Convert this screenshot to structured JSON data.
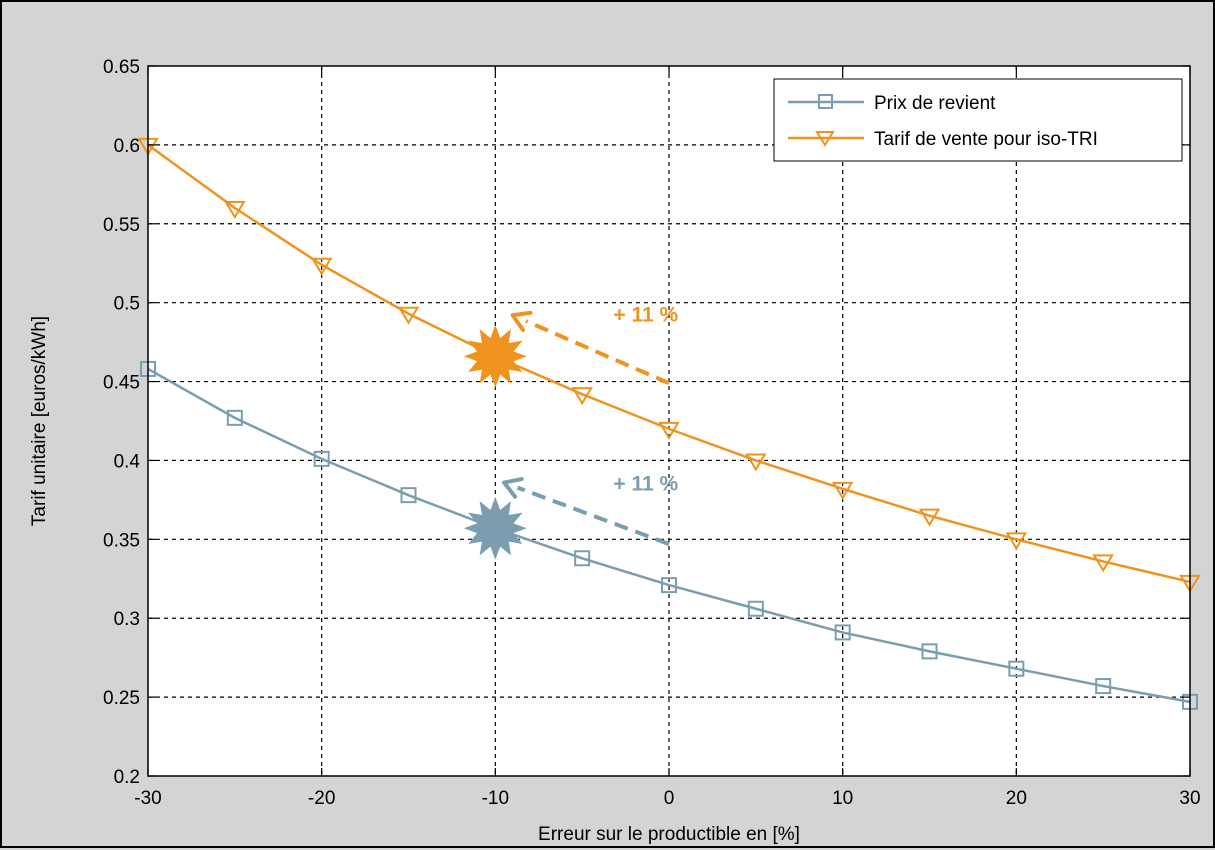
{
  "chart_data": {
    "type": "line",
    "title": "",
    "xlabel": "Erreur sur le productible en [%]",
    "ylabel": "Tarif unitaire [euros/kWh]",
    "xlim": [
      -30,
      30
    ],
    "ylim": [
      0.2,
      0.65
    ],
    "grid": true,
    "legend_position": "top-right",
    "x": [
      -30,
      -25,
      -20,
      -15,
      -10,
      -5,
      0,
      5,
      10,
      15,
      20,
      25,
      30
    ],
    "x_ticks": [
      "-30",
      "-20",
      "-10",
      "0",
      "10",
      "20",
      "30"
    ],
    "y_ticks": [
      "0.2",
      "0.25",
      "0.3",
      "0.35",
      "0.4",
      "0.45",
      "0.5",
      "0.55",
      "0.6",
      "0.65"
    ],
    "series": [
      {
        "name": "Prix de revient",
        "marker": "square",
        "color": "#7a9db0",
        "values": [
          0.458,
          0.427,
          0.401,
          0.378,
          0.357,
          0.338,
          0.321,
          0.306,
          0.291,
          0.279,
          0.268,
          0.257,
          0.247
        ]
      },
      {
        "name": "Tarif de vente pour iso-TRI",
        "marker": "triangle-down",
        "color": "#f0931e",
        "values": [
          0.6,
          0.56,
          0.524,
          0.493,
          0.466,
          0.442,
          0.42,
          0.4,
          0.382,
          0.365,
          0.35,
          0.336,
          0.323
        ]
      }
    ],
    "annotations": [
      {
        "text": "+ 11 %",
        "color": "#f0931e",
        "star": {
          "x": -10,
          "y": 0.466
        },
        "arrow_from": {
          "x": 0,
          "y": 0.449
        },
        "arrow_to": {
          "x": -9,
          "y": 0.492
        },
        "label_at": {
          "x": -3.2,
          "y": 0.488
        }
      },
      {
        "text": "+ 11 %",
        "color": "#7a9db0",
        "star": {
          "x": -10,
          "y": 0.357
        },
        "arrow_from": {
          "x": 0,
          "y": 0.347
        },
        "arrow_to": {
          "x": -9.5,
          "y": 0.386
        },
        "label_at": {
          "x": -3.2,
          "y": 0.381
        }
      }
    ]
  }
}
